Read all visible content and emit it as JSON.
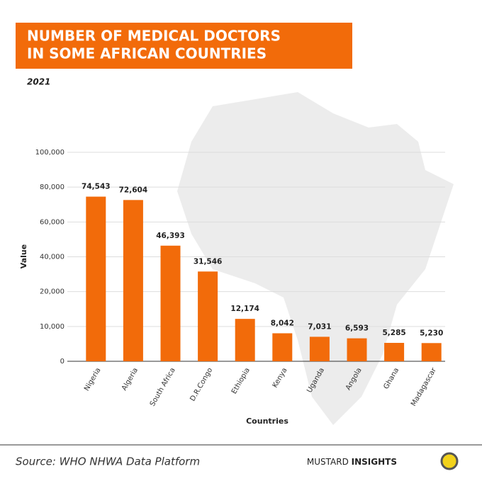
{
  "chart_data": {
    "type": "bar",
    "title": [
      "NUMBER OF MEDICAL DOCTORS",
      "IN SOME AFRICAN COUNTRIES"
    ],
    "subtitle": "2021",
    "x_label": "Countries",
    "y_label": "Value",
    "categories": [
      "Nigeria",
      "Algeria",
      "South Africa",
      "D.R.Congo",
      "Ethiopia",
      "Kenya",
      "Uganda",
      "Angola",
      "Ghana",
      "Madagascar"
    ],
    "values": [
      74543,
      72604,
      46393,
      31546,
      12174,
      8042,
      7031,
      6593,
      5285,
      5230
    ],
    "value_labels": [
      "74,543",
      "72,604",
      "46,393",
      "31,546",
      "12,174",
      "8,042",
      "7,031",
      "6,593",
      "5,285",
      "5,230"
    ],
    "color": "#f26b0a",
    "ylim": [
      0,
      100000
    ],
    "yticks": [
      0,
      {
        "value": 10000,
        "label": "10,000"
      },
      {
        "value": 20000,
        "label": "20,000"
      },
      {
        "value": 40000,
        "label": "40,000"
      },
      {
        "value": 60000,
        "label": "60,000"
      },
      {
        "value": 80000,
        "label": "80,000"
      },
      {
        "value": 100000,
        "label": "100,000"
      }
    ],
    "grid": true,
    "source": "Source: WHO NHWA Data Platform",
    "brand": [
      "MUSTARD",
      "INSIGHTS"
    ]
  }
}
